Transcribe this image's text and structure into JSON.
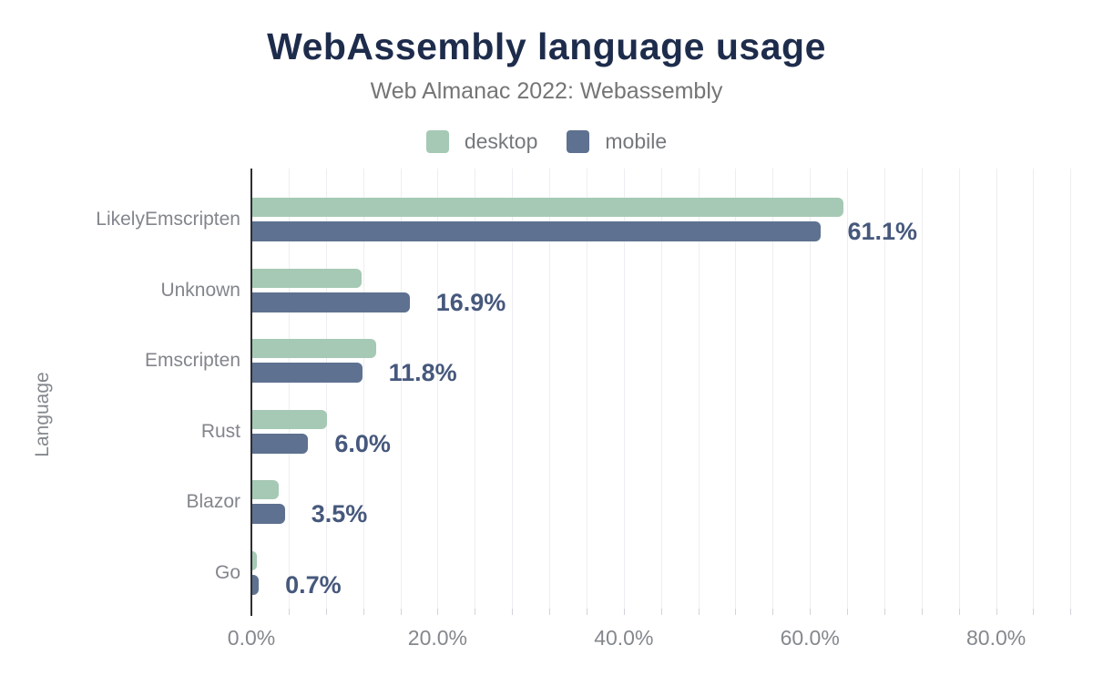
{
  "title": "WebAssembly language usage",
  "subtitle": "Web Almanac 2022: Webassembly",
  "legend": {
    "items": [
      {
        "label": "desktop",
        "color": "#a5c9b4"
      },
      {
        "label": "mobile",
        "color": "#5e7190"
      }
    ]
  },
  "colors": {
    "title": "#1e2c4c",
    "data_label": "#46587c",
    "desktop_bar": "#a5c9b4",
    "mobile_bar": "#5e7190",
    "gridline": "#eeeef2",
    "axis_line": "#2e2e33",
    "muted_text": "#82868c"
  },
  "chart_data": {
    "type": "bar",
    "orientation": "horizontal",
    "title": "WebAssembly language usage",
    "subtitle": "Web Almanac 2022: Webassembly",
    "xlabel": "",
    "ylabel": "Language",
    "categories": [
      "LikelyEmscripten",
      "Unknown",
      "Emscripten",
      "Rust",
      "Blazor",
      "Go"
    ],
    "series": [
      {
        "name": "desktop",
        "color": "#a5c9b4",
        "values": [
          63.5,
          11.7,
          13.3,
          8.0,
          2.8,
          0.5
        ]
      },
      {
        "name": "mobile",
        "color": "#5e7190",
        "values": [
          61.1,
          16.9,
          11.8,
          6.0,
          3.5,
          0.7
        ]
      }
    ],
    "data_labels": [
      "61.1%",
      "16.9%",
      "11.8%",
      "6.0%",
      "3.5%",
      "0.7%"
    ],
    "x_ticks": [
      "0.0%",
      "20.0%",
      "40.0%",
      "60.0%",
      "80.0%"
    ],
    "x_tick_values": [
      0,
      20,
      40,
      60,
      80
    ],
    "xlim": [
      0,
      88
    ],
    "grid": "vertical minor gridlines every 4%",
    "legend_position": "top"
  }
}
